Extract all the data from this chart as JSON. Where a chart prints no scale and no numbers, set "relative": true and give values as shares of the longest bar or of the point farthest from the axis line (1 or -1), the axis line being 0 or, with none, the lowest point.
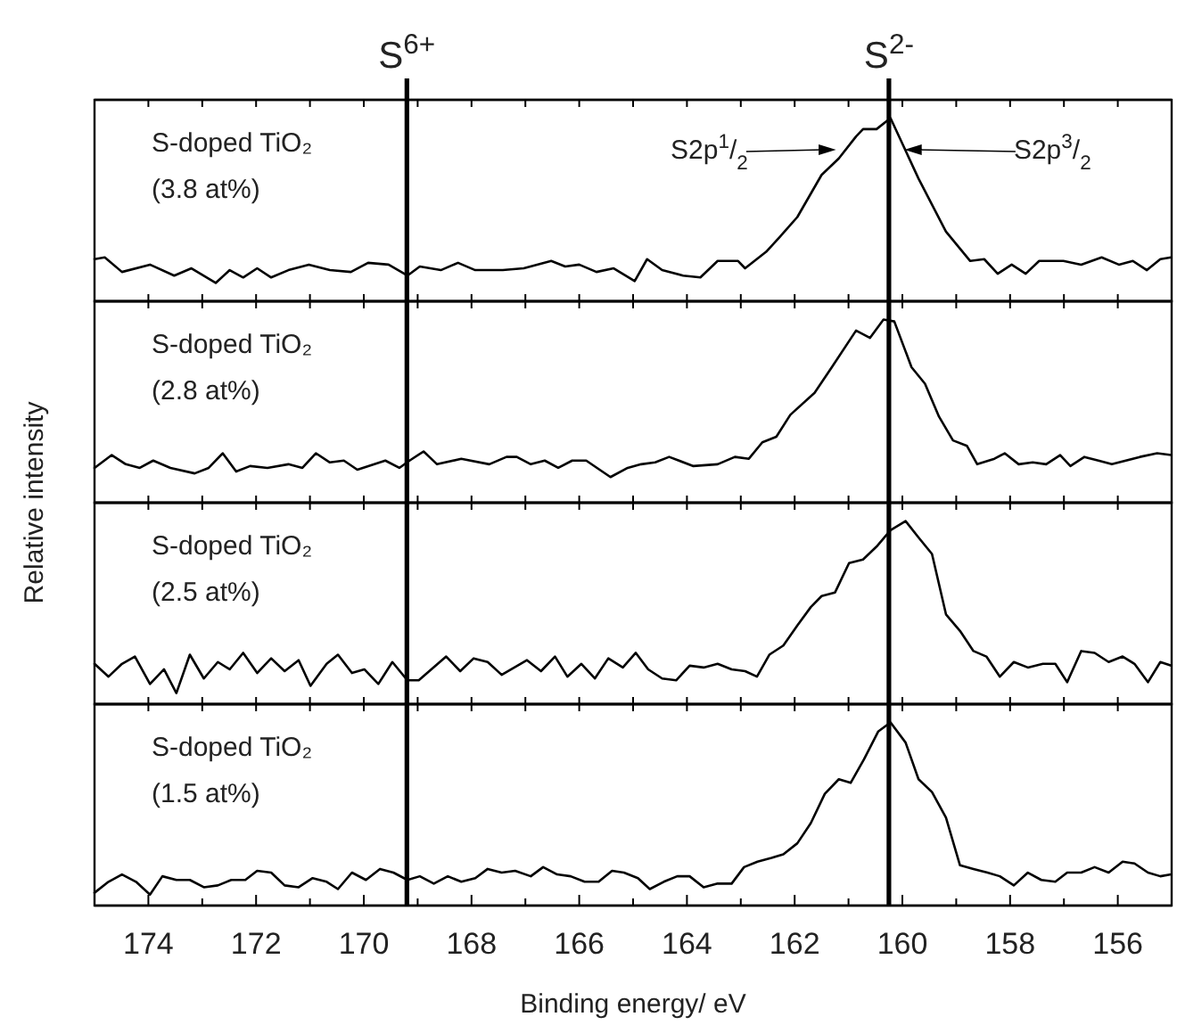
{
  "chart_data": [
    {
      "type": "line",
      "title": "S-doped TiO₂",
      "subtitle": "(3.8 at%)",
      "ylabel": "Relative intensity",
      "relative": true,
      "xlim": [
        175,
        155
      ],
      "tick_labels": false,
      "xticks": [
        {
          "value": 174,
          "label": null
        },
        {
          "value": 173,
          "label": null
        },
        {
          "value": 172,
          "label": null
        },
        {
          "value": 171,
          "label": null
        },
        {
          "value": 170,
          "label": null
        },
        {
          "value": 169,
          "label": null
        },
        {
          "value": 168,
          "label": null
        },
        {
          "value": 167,
          "label": null
        },
        {
          "value": 166,
          "label": null
        },
        {
          "value": 165,
          "label": null
        },
        {
          "value": 164,
          "label": null
        },
        {
          "value": 163,
          "label": null
        },
        {
          "value": 162,
          "label": null
        },
        {
          "value": 161,
          "label": null
        },
        {
          "value": 160,
          "label": null
        },
        {
          "value": 159,
          "label": null
        },
        {
          "value": 158,
          "label": null
        },
        {
          "value": 157,
          "label": null
        },
        {
          "value": 156,
          "label": null
        }
      ],
      "x": [
        175.0,
        174.81,
        174.49,
        173.97,
        173.52,
        173.2,
        172.75,
        172.49,
        172.24,
        171.98,
        171.72,
        171.4,
        171.02,
        170.63,
        170.24,
        169.92,
        169.54,
        169.19,
        168.96,
        168.57,
        168.25,
        167.93,
        167.42,
        167.03,
        166.52,
        166.26,
        166.0,
        165.68,
        165.36,
        164.97,
        164.74,
        164.46,
        164.07,
        163.75,
        163.43,
        163.05,
        162.92,
        162.53,
        162.28,
        161.95,
        161.5,
        161.18,
        160.86,
        160.73,
        160.48,
        160.22,
        160.03,
        159.7,
        159.19,
        158.74,
        158.48,
        158.23,
        157.97,
        157.71,
        157.46,
        157.01,
        156.68,
        156.3,
        155.98,
        155.72,
        155.46,
        155.21,
        155.01
      ],
      "series": [
        {
          "color": "#000000",
          "values": [
            0.23,
            0.24,
            0.16,
            0.2,
            0.14,
            0.18,
            0.1,
            0.17,
            0.13,
            0.18,
            0.13,
            0.17,
            0.2,
            0.17,
            0.16,
            0.21,
            0.2,
            0.14,
            0.19,
            0.17,
            0.21,
            0.17,
            0.17,
            0.18,
            0.22,
            0.19,
            0.2,
            0.16,
            0.18,
            0.11,
            0.23,
            0.17,
            0.14,
            0.13,
            0.22,
            0.22,
            0.18,
            0.27,
            0.35,
            0.46,
            0.69,
            0.78,
            0.9,
            0.94,
            0.94,
            1,
            0.88,
            0.67,
            0.38,
            0.22,
            0.23,
            0.15,
            0.2,
            0.15,
            0.22,
            0.22,
            0.2,
            0.24,
            0.2,
            0.22,
            0.17,
            0.23,
            0.24
          ]
        }
      ],
      "ref_lines": [
        {
          "axis": "x",
          "value": 169.2,
          "label": "S$^{6+}$",
          "color": "#000000"
        },
        {
          "axis": "x",
          "value": 160.25,
          "label": "S$^{2-}$",
          "color": "#000000"
        }
      ],
      "annotations": [
        "S2p$^{1}$/$_{2}$",
        "S2p$^{3}$/$_{2}$"
      ]
    },
    {
      "type": "line",
      "title": "S-doped TiO₂",
      "subtitle": "(2.8 at%)",
      "relative": true,
      "xlim": [
        175,
        155
      ],
      "tick_labels": false,
      "xticks": [
        {
          "value": 174,
          "label": null
        },
        {
          "value": 173,
          "label": null
        },
        {
          "value": 172,
          "label": null
        },
        {
          "value": 171,
          "label": null
        },
        {
          "value": 170,
          "label": null
        },
        {
          "value": 169,
          "label": null
        },
        {
          "value": 168,
          "label": null
        },
        {
          "value": 167,
          "label": null
        },
        {
          "value": 166,
          "label": null
        },
        {
          "value": 165,
          "label": null
        },
        {
          "value": 164,
          "label": null
        },
        {
          "value": 163,
          "label": null
        },
        {
          "value": 162,
          "label": null
        },
        {
          "value": 161,
          "label": null
        },
        {
          "value": 160,
          "label": null
        },
        {
          "value": 159,
          "label": null
        },
        {
          "value": 158,
          "label": null
        },
        {
          "value": 157,
          "label": null
        },
        {
          "value": 156,
          "label": null
        }
      ],
      "x": [
        175.0,
        174.68,
        174.42,
        174.16,
        173.91,
        173.59,
        173.14,
        172.88,
        172.62,
        172.37,
        172.11,
        171.79,
        171.4,
        171.14,
        170.89,
        170.63,
        170.37,
        170.12,
        169.6,
        169.34,
        169.15,
        168.89,
        168.64,
        168.19,
        167.67,
        167.35,
        167.16,
        166.9,
        166.64,
        166.39,
        166.13,
        165.87,
        165.42,
        165.1,
        164.85,
        164.59,
        164.33,
        163.88,
        163.43,
        163.11,
        162.85,
        162.6,
        162.34,
        162.08,
        161.63,
        161.31,
        160.86,
        160.6,
        160.35,
        160.15,
        159.83,
        159.58,
        159.32,
        159.06,
        158.8,
        158.61,
        158.29,
        158.1,
        157.84,
        157.58,
        157.33,
        157.07,
        156.88,
        156.62,
        156.36,
        156.11,
        155.59,
        155.27,
        155.01
      ],
      "series": [
        {
          "color": "#000000",
          "values": [
            0.19,
            0.26,
            0.21,
            0.19,
            0.23,
            0.19,
            0.16,
            0.19,
            0.27,
            0.17,
            0.2,
            0.19,
            0.21,
            0.19,
            0.27,
            0.22,
            0.23,
            0.18,
            0.23,
            0.19,
            0.23,
            0.28,
            0.21,
            0.24,
            0.21,
            0.25,
            0.25,
            0.21,
            0.23,
            0.19,
            0.23,
            0.23,
            0.14,
            0.19,
            0.21,
            0.22,
            0.25,
            0.2,
            0.21,
            0.25,
            0.24,
            0.33,
            0.36,
            0.48,
            0.6,
            0.74,
            0.94,
            0.9,
            1.0,
            0.99,
            0.74,
            0.65,
            0.47,
            0.34,
            0.31,
            0.21,
            0.24,
            0.27,
            0.21,
            0.22,
            0.21,
            0.26,
            0.2,
            0.25,
            0.23,
            0.21,
            0.25,
            0.27,
            0.26
          ]
        }
      ],
      "ref_lines": [
        {
          "axis": "x",
          "value": 169.2,
          "color": "#000000"
        },
        {
          "axis": "x",
          "value": 160.25,
          "color": "#000000"
        }
      ]
    },
    {
      "type": "line",
      "title": "S-doped TiO₂",
      "subtitle": "(2.5 at%)",
      "relative": true,
      "xlim": [
        175,
        155
      ],
      "tick_labels": false,
      "xticks": [
        {
          "value": 174,
          "label": null
        },
        {
          "value": 173,
          "label": null
        },
        {
          "value": 172,
          "label": null
        },
        {
          "value": 171,
          "label": null
        },
        {
          "value": 170,
          "label": null
        },
        {
          "value": 169,
          "label": null
        },
        {
          "value": 168,
          "label": null
        },
        {
          "value": 167,
          "label": null
        },
        {
          "value": 166,
          "label": null
        },
        {
          "value": 165,
          "label": null
        },
        {
          "value": 164,
          "label": null
        },
        {
          "value": 163,
          "label": null
        },
        {
          "value": 162,
          "label": null
        },
        {
          "value": 161,
          "label": null
        },
        {
          "value": 160,
          "label": null
        },
        {
          "value": 159,
          "label": null
        },
        {
          "value": 158,
          "label": null
        },
        {
          "value": 157,
          "label": null
        },
        {
          "value": 156,
          "label": null
        }
      ],
      "x": [
        175.0,
        174.74,
        174.49,
        174.25,
        173.97,
        173.71,
        173.48,
        173.23,
        172.97,
        172.71,
        172.49,
        172.24,
        171.98,
        171.72,
        171.47,
        171.21,
        170.99,
        170.69,
        170.48,
        170.22,
        169.99,
        169.73,
        169.47,
        169.19,
        168.98,
        168.47,
        168.21,
        167.96,
        167.7,
        167.44,
        166.97,
        166.71,
        166.45,
        166.22,
        165.96,
        165.71,
        165.46,
        165.19,
        164.95,
        164.72,
        164.46,
        164.2,
        163.95,
        163.69,
        163.43,
        163.17,
        162.92,
        162.7,
        162.47,
        162.21,
        161.95,
        161.7,
        161.5,
        161.25,
        160.99,
        160.73,
        160.48,
        160.22,
        159.94,
        159.7,
        159.45,
        159.19,
        158.93,
        158.68,
        158.44,
        158.19,
        157.93,
        157.67,
        157.39,
        157.16,
        156.94,
        156.68,
        156.43,
        156.17,
        155.91,
        155.69,
        155.44,
        155.21,
        155.01
      ],
      "series": [
        {
          "color": "#000000",
          "values": [
            0.22,
            0.15,
            0.22,
            0.26,
            0.11,
            0.19,
            0.06,
            0.27,
            0.14,
            0.23,
            0.19,
            0.28,
            0.17,
            0.25,
            0.18,
            0.24,
            0.1,
            0.22,
            0.27,
            0.17,
            0.19,
            0.11,
            0.23,
            0.13,
            0.13,
            0.26,
            0.18,
            0.25,
            0.23,
            0.16,
            0.24,
            0.18,
            0.26,
            0.15,
            0.22,
            0.14,
            0.25,
            0.2,
            0.28,
            0.19,
            0.14,
            0.13,
            0.21,
            0.2,
            0.22,
            0.19,
            0.18,
            0.15,
            0.27,
            0.32,
            0.43,
            0.53,
            0.59,
            0.61,
            0.77,
            0.79,
            0.86,
            0.95,
            1.0,
            0.91,
            0.82,
            0.49,
            0.4,
            0.29,
            0.26,
            0.15,
            0.23,
            0.2,
            0.22,
            0.22,
            0.12,
            0.29,
            0.28,
            0.23,
            0.26,
            0.22,
            0.12,
            0.23,
            0.21
          ]
        }
      ],
      "ref_lines": [
        {
          "axis": "x",
          "value": 169.2,
          "color": "#000000"
        },
        {
          "axis": "x",
          "value": 160.25,
          "color": "#000000"
        }
      ]
    },
    {
      "type": "line",
      "title": "S-doped TiO₂",
      "subtitle": "(1.5 at%)",
      "xlabel": "Binding energy/ eV",
      "relative": true,
      "xlim": [
        175,
        155
      ],
      "tick_labels": "x",
      "xticks": [
        174,
        {
          "value": 173,
          "label": null
        },
        172,
        {
          "value": 171,
          "label": null
        },
        170,
        {
          "value": 169,
          "label": null
        },
        168,
        {
          "value": 167,
          "label": null
        },
        166,
        {
          "value": 165,
          "label": null
        },
        164,
        {
          "value": 163,
          "label": null
        },
        162,
        {
          "value": 161,
          "label": null
        },
        160,
        {
          "value": 159,
          "label": null
        },
        158,
        {
          "value": 157,
          "label": null
        },
        156
      ],
      "x": [
        175.0,
        174.74,
        174.49,
        174.23,
        173.97,
        173.74,
        173.48,
        173.23,
        172.97,
        172.71,
        172.46,
        172.2,
        171.98,
        171.72,
        171.47,
        171.21,
        170.95,
        170.69,
        170.48,
        170.22,
        169.96,
        169.7,
        169.45,
        169.19,
        168.96,
        168.7,
        168.44,
        168.19,
        167.93,
        167.7,
        167.44,
        167.19,
        166.9,
        166.67,
        166.41,
        166.16,
        165.9,
        165.64,
        165.39,
        165.17,
        164.91,
        164.69,
        164.43,
        164.18,
        163.95,
        163.69,
        163.43,
        163.17,
        162.94,
        162.69,
        162.43,
        162.21,
        161.95,
        161.7,
        161.44,
        161.18,
        160.96,
        160.71,
        160.45,
        160.22,
        159.94,
        159.7,
        159.45,
        159.19,
        158.93,
        158.68,
        158.42,
        158.19,
        157.93,
        157.67,
        157.42,
        157.16,
        156.94,
        156.68,
        156.43,
        156.17,
        155.91,
        155.69,
        155.44,
        155.21,
        155.01
      ],
      "series": [
        {
          "color": "#000000",
          "values": [
            0.07,
            0.13,
            0.17,
            0.13,
            0.06,
            0.16,
            0.14,
            0.14,
            0.1,
            0.11,
            0.14,
            0.14,
            0.19,
            0.18,
            0.11,
            0.1,
            0.15,
            0.13,
            0.09,
            0.18,
            0.14,
            0.2,
            0.18,
            0.14,
            0.16,
            0.12,
            0.16,
            0.13,
            0.15,
            0.2,
            0.18,
            0.19,
            0.16,
            0.21,
            0.17,
            0.16,
            0.13,
            0.13,
            0.19,
            0.18,
            0.15,
            0.09,
            0.13,
            0.16,
            0.16,
            0.1,
            0.12,
            0.12,
            0.21,
            0.24,
            0.26,
            0.28,
            0.34,
            0.45,
            0.61,
            0.69,
            0.67,
            0.8,
            0.95,
            1.0,
            0.89,
            0.69,
            0.62,
            0.48,
            0.22,
            0.2,
            0.18,
            0.16,
            0.11,
            0.18,
            0.14,
            0.13,
            0.18,
            0.18,
            0.21,
            0.18,
            0.24,
            0.23,
            0.18,
            0.16,
            0.17
          ]
        }
      ],
      "ref_lines": [
        {
          "axis": "x",
          "value": 169.2,
          "color": "#000000"
        },
        {
          "axis": "x",
          "value": 160.25,
          "color": "#000000"
        }
      ]
    }
  ]
}
